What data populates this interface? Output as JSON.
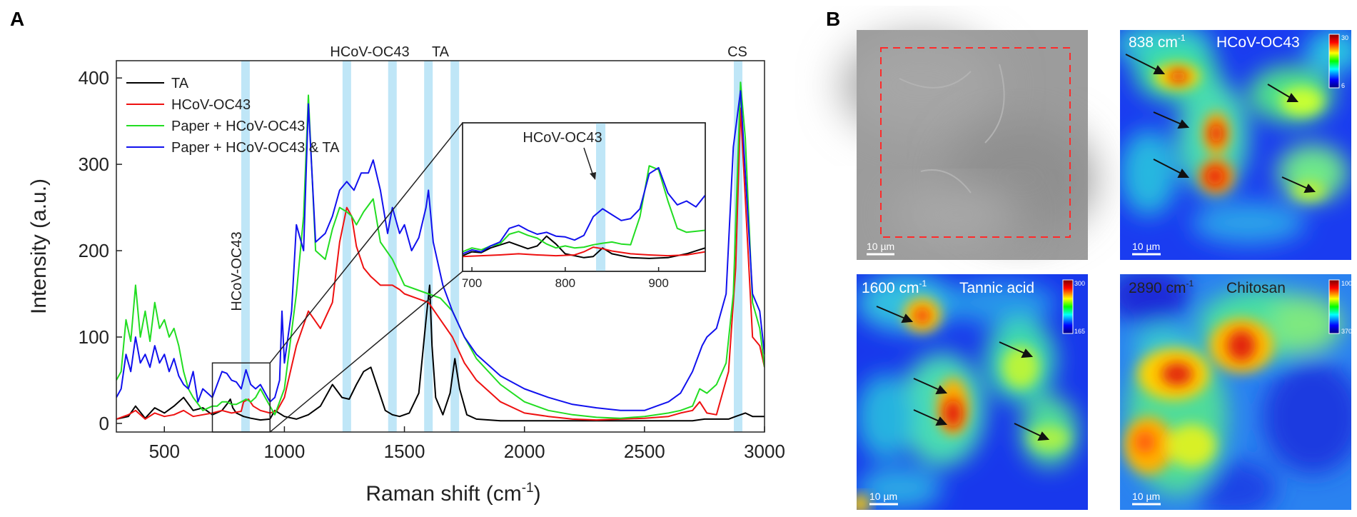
{
  "figure": {
    "panel_a_label": "A",
    "panel_b_label": "B"
  },
  "chart_data": [
    {
      "type": "line",
      "panel": "A",
      "xlabel": "Raman shift (cm-1)",
      "xlabel_main": "Raman shift (cm",
      "xlabel_sup": "-1",
      "xlabel_close": ")",
      "ylabel": "Intensity (a.u.)",
      "xlim": [
        300,
        3000
      ],
      "ylim": [
        -10,
        420
      ],
      "xticks": [
        500,
        1000,
        1500,
        2000,
        2500,
        3000
      ],
      "yticks": [
        0,
        100,
        200,
        300,
        400
      ],
      "grid": false,
      "legend_position": "top-left",
      "series": [
        {
          "name": "TA",
          "color": "#000000",
          "x": [
            300,
            350,
            380,
            420,
            460,
            500,
            540,
            580,
            620,
            660,
            700,
            740,
            760,
            775,
            785,
            800,
            830,
            860,
            900,
            940,
            960,
            1000,
            1050,
            1100,
            1150,
            1200,
            1240,
            1270,
            1300,
            1330,
            1360,
            1390,
            1420,
            1450,
            1480,
            1520,
            1560,
            1590,
            1605,
            1615,
            1630,
            1660,
            1690,
            1710,
            1730,
            1760,
            1800,
            1900,
            2000,
            2200,
            2400,
            2600,
            2700,
            2750,
            2800,
            2850,
            2880,
            2900,
            2920,
            2950,
            3000
          ],
          "y": [
            5,
            8,
            20,
            6,
            18,
            12,
            20,
            30,
            15,
            18,
            10,
            15,
            22,
            28,
            18,
            12,
            8,
            6,
            4,
            5,
            15,
            8,
            5,
            10,
            20,
            45,
            30,
            28,
            45,
            60,
            65,
            40,
            15,
            10,
            8,
            12,
            35,
            120,
            160,
            90,
            30,
            10,
            35,
            75,
            40,
            10,
            5,
            3,
            3,
            3,
            3,
            3,
            3,
            5,
            5,
            5,
            8,
            10,
            12,
            8,
            8
          ]
        },
        {
          "name": "HCoV-OC43",
          "color": "#ee1111",
          "x": [
            300,
            350,
            380,
            420,
            460,
            500,
            540,
            580,
            620,
            660,
            700,
            740,
            780,
            820,
            830,
            850,
            870,
            900,
            940,
            970,
            1000,
            1050,
            1100,
            1150,
            1200,
            1230,
            1260,
            1280,
            1300,
            1330,
            1360,
            1400,
            1450,
            1480,
            1500,
            1550,
            1600,
            1650,
            1700,
            1750,
            1800,
            1900,
            2000,
            2100,
            2200,
            2300,
            2400,
            2500,
            2600,
            2650,
            2700,
            2730,
            2760,
            2800,
            2850,
            2880,
            2900,
            2920,
            2950,
            2980,
            3000
          ],
          "y": [
            5,
            10,
            15,
            5,
            12,
            8,
            10,
            15,
            8,
            10,
            12,
            15,
            12,
            14,
            25,
            28,
            20,
            15,
            12,
            15,
            30,
            90,
            130,
            110,
            140,
            210,
            250,
            240,
            205,
            180,
            170,
            160,
            160,
            155,
            150,
            145,
            140,
            120,
            100,
            70,
            50,
            25,
            12,
            8,
            5,
            4,
            5,
            6,
            8,
            12,
            15,
            25,
            12,
            10,
            60,
            180,
            365,
            260,
            100,
            90,
            65
          ]
        },
        {
          "name": "Paper + HCoV-OC43",
          "color": "#22dd22",
          "x": [
            300,
            320,
            340,
            360,
            380,
            400,
            420,
            440,
            460,
            480,
            500,
            520,
            540,
            560,
            580,
            600,
            620,
            660,
            700,
            720,
            740,
            760,
            780,
            800,
            820,
            840,
            860,
            880,
            900,
            920,
            940,
            960,
            1000,
            1050,
            1080,
            1100,
            1130,
            1170,
            1200,
            1230,
            1260,
            1280,
            1300,
            1330,
            1370,
            1400,
            1450,
            1500,
            1550,
            1600,
            1650,
            1700,
            1750,
            1800,
            1900,
            2000,
            2100,
            2200,
            2300,
            2400,
            2500,
            2600,
            2650,
            2700,
            2730,
            2760,
            2800,
            2840,
            2870,
            2900,
            2920,
            2950,
            2980,
            3000
          ],
          "y": [
            50,
            60,
            120,
            95,
            160,
            100,
            130,
            95,
            140,
            110,
            120,
            100,
            110,
            90,
            60,
            40,
            30,
            15,
            20,
            20,
            25,
            25,
            22,
            22,
            25,
            28,
            25,
            30,
            40,
            30,
            20,
            10,
            40,
            150,
            240,
            380,
            200,
            190,
            225,
            250,
            245,
            240,
            230,
            245,
            260,
            210,
            190,
            160,
            155,
            150,
            145,
            130,
            100,
            75,
            45,
            25,
            15,
            10,
            7,
            6,
            8,
            12,
            15,
            20,
            40,
            35,
            45,
            70,
            150,
            395,
            330,
            140,
            110,
            65
          ]
        },
        {
          "name": "Paper + HCoV-OC43 & TA",
          "color": "#1111ee",
          "x": [
            300,
            320,
            340,
            360,
            380,
            400,
            420,
            440,
            460,
            480,
            500,
            520,
            540,
            560,
            580,
            600,
            620,
            640,
            660,
            700,
            720,
            740,
            760,
            780,
            800,
            820,
            840,
            860,
            880,
            900,
            920,
            940,
            960,
            980,
            990,
            1000,
            1030,
            1050,
            1080,
            1100,
            1130,
            1170,
            1200,
            1230,
            1260,
            1290,
            1320,
            1350,
            1370,
            1400,
            1430,
            1450,
            1480,
            1500,
            1530,
            1560,
            1590,
            1600,
            1620,
            1660,
            1700,
            1750,
            1800,
            1900,
            2000,
            2100,
            2200,
            2300,
            2400,
            2500,
            2550,
            2600,
            2650,
            2700,
            2740,
            2760,
            2800,
            2840,
            2870,
            2900,
            2920,
            2950,
            2980,
            3000
          ],
          "y": [
            30,
            40,
            80,
            60,
            100,
            70,
            80,
            65,
            90,
            70,
            80,
            60,
            75,
            55,
            45,
            40,
            60,
            25,
            40,
            30,
            45,
            60,
            58,
            50,
            48,
            40,
            62,
            45,
            40,
            45,
            35,
            25,
            30,
            50,
            130,
            70,
            130,
            230,
            200,
            370,
            210,
            220,
            240,
            270,
            280,
            270,
            290,
            290,
            305,
            270,
            220,
            250,
            220,
            230,
            200,
            215,
            250,
            270,
            210,
            160,
            130,
            100,
            80,
            55,
            40,
            30,
            22,
            18,
            15,
            15,
            20,
            25,
            35,
            60,
            90,
            100,
            110,
            150,
            320,
            385,
            290,
            150,
            130,
            80
          ]
        }
      ],
      "highlight_bands_cm": [
        838,
        1260,
        1450,
        1600,
        1710,
        2890
      ],
      "annotations": {
        "band_label_left": "HCoV-OC43",
        "band_label_top": "HCoV-OC43",
        "band_label_ta": "TA",
        "band_label_cs": "CS"
      },
      "zoom_region": {
        "xlim": [
          700,
          940
        ],
        "ylim": [
          -10,
          70
        ]
      }
    },
    {
      "type": "line",
      "panel": "A-inset",
      "title": "HCoV-OC43",
      "xlim": [
        690,
        950
      ],
      "ylim": [
        -30,
        350
      ],
      "xticks": [
        700,
        800,
        900
      ],
      "series": [
        {
          "name": "TA",
          "color": "#000000",
          "x": [
            690,
            700,
            710,
            720,
            740,
            760,
            770,
            780,
            790,
            800,
            820,
            830,
            840,
            850,
            870,
            890,
            910,
            930,
            950
          ],
          "y": [
            10,
            20,
            18,
            30,
            45,
            28,
            35,
            60,
            40,
            15,
            5,
            8,
            30,
            15,
            5,
            3,
            5,
            15,
            30
          ]
        },
        {
          "name": "HCoV-OC43",
          "color": "#ee1111",
          "x": [
            690,
            710,
            730,
            750,
            770,
            790,
            810,
            820,
            830,
            840,
            850,
            870,
            890,
            910,
            930,
            950
          ],
          "y": [
            8,
            10,
            12,
            15,
            12,
            10,
            12,
            20,
            32,
            28,
            22,
            15,
            12,
            10,
            12,
            20
          ]
        },
        {
          "name": "Paper + HCoV-OC43",
          "color": "#22dd22",
          "x": [
            690,
            700,
            710,
            720,
            730,
            740,
            750,
            760,
            770,
            780,
            790,
            800,
            810,
            820,
            830,
            840,
            850,
            860,
            870,
            880,
            890,
            900,
            910,
            920,
            930,
            950
          ],
          "y": [
            20,
            30,
            25,
            35,
            40,
            65,
            72,
            62,
            55,
            40,
            30,
            35,
            30,
            32,
            38,
            42,
            45,
            40,
            38,
            110,
            240,
            230,
            150,
            80,
            70,
            75
          ]
        },
        {
          "name": "Paper + HCoV-OC43 & TA",
          "color": "#1111ee",
          "x": [
            690,
            700,
            710,
            720,
            730,
            740,
            750,
            760,
            770,
            780,
            790,
            800,
            810,
            820,
            830,
            840,
            850,
            860,
            870,
            880,
            890,
            900,
            910,
            920,
            930,
            940,
            950
          ],
          "y": [
            15,
            25,
            20,
            35,
            45,
            80,
            88,
            75,
            65,
            70,
            60,
            58,
            50,
            62,
            110,
            130,
            115,
            100,
            105,
            130,
            220,
            235,
            170,
            140,
            150,
            135,
            165
          ]
        }
      ]
    },
    {
      "type": "heatmap",
      "panel": "B",
      "colormap": "jet",
      "maps": [
        {
          "label": "",
          "kind": "optical",
          "scale_bar": "10 µm"
        },
        {
          "label": "838 cm-1",
          "label_main": "838 cm",
          "label_sup": "-1",
          "compound": "HCoV-OC43",
          "scale_bar": "10 µm",
          "colorbar": [
            6,
            30
          ]
        },
        {
          "label": "1600 cm-1",
          "label_main": "1600 cm",
          "label_sup": "-1",
          "compound": "Tannic acid",
          "scale_bar": "10 µm",
          "colorbar": [
            165,
            300
          ]
        },
        {
          "label": "2890 cm-1",
          "label_main": "2890 cm",
          "label_sup": "-1",
          "compound": "Chitosan",
          "scale_bar": "10 µm",
          "colorbar": [
            370,
            1000
          ]
        }
      ]
    }
  ]
}
